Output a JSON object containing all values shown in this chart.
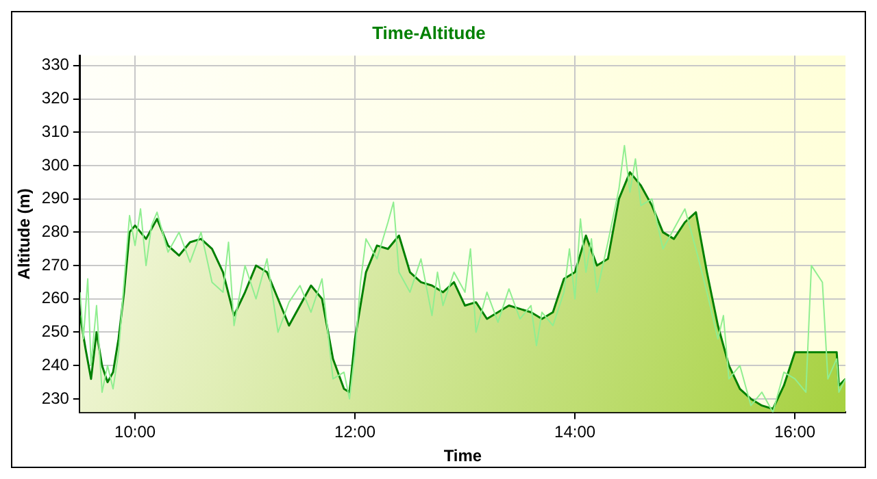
{
  "chart_data": {
    "type": "area",
    "title": "Time-Altitude",
    "xlabel": "Time",
    "ylabel": "Altitude (m)",
    "xlim": [
      9.5,
      16.46
    ],
    "ylim": [
      226,
      333
    ],
    "xticks": [
      {
        "value": 10,
        "label": "10:00"
      },
      {
        "value": 12,
        "label": "12:00"
      },
      {
        "value": 14,
        "label": "14:00"
      },
      {
        "value": 16,
        "label": "16:00"
      }
    ],
    "yticks": [
      230,
      240,
      250,
      260,
      270,
      280,
      290,
      300,
      310,
      320,
      330
    ],
    "grid": true,
    "legend": false,
    "series": [
      {
        "type": "line",
        "color": "#90ee90",
        "x": [
          9.5,
          9.53,
          9.57,
          9.6,
          9.65,
          9.7,
          9.75,
          9.8,
          9.85,
          9.9,
          9.95,
          10.0,
          10.05,
          10.1,
          10.15,
          10.2,
          10.3,
          10.4,
          10.5,
          10.6,
          10.7,
          10.8,
          10.85,
          10.9,
          11.0,
          11.1,
          11.2,
          11.3,
          11.4,
          11.5,
          11.6,
          11.7,
          11.8,
          11.9,
          11.95,
          12.0,
          12.05,
          12.1,
          12.2,
          12.3,
          12.35,
          12.4,
          12.5,
          12.6,
          12.7,
          12.75,
          12.8,
          12.9,
          13.0,
          13.05,
          13.1,
          13.2,
          13.3,
          13.4,
          13.5,
          13.6,
          13.65,
          13.7,
          13.8,
          13.9,
          13.95,
          14.0,
          14.05,
          14.1,
          14.15,
          14.2,
          14.3,
          14.4,
          14.45,
          14.5,
          14.55,
          14.6,
          14.7,
          14.8,
          14.9,
          15.0,
          15.1,
          15.2,
          15.3,
          15.35,
          15.4,
          15.5,
          15.6,
          15.7,
          15.8,
          15.9,
          16.0,
          16.1,
          16.15,
          16.25,
          16.3,
          16.38,
          16.4,
          16.46
        ],
        "values": [
          262,
          248,
          266,
          240,
          258,
          232,
          240,
          233,
          244,
          265,
          285,
          276,
          287,
          270,
          282,
          286,
          274,
          280,
          271,
          280,
          265,
          262,
          277,
          252,
          270,
          260,
          272,
          250,
          259,
          264,
          256,
          266,
          236,
          238,
          230,
          244,
          265,
          278,
          272,
          283,
          289,
          268,
          262,
          272,
          255,
          268,
          258,
          268,
          262,
          275,
          250,
          262,
          253,
          263,
          254,
          258,
          246,
          256,
          252,
          262,
          275,
          260,
          284,
          268,
          278,
          262,
          277,
          293,
          306,
          292,
          302,
          288,
          290,
          275,
          281,
          287,
          275,
          262,
          248,
          255,
          236,
          240,
          228,
          232,
          226,
          238,
          236,
          232,
          270,
          265,
          236,
          242,
          232,
          236
        ]
      },
      {
        "type": "area",
        "color": "#008000",
        "x": [
          9.5,
          9.55,
          9.6,
          9.65,
          9.7,
          9.75,
          9.8,
          9.85,
          9.9,
          9.95,
          10.0,
          10.1,
          10.2,
          10.3,
          10.4,
          10.5,
          10.6,
          10.7,
          10.8,
          10.9,
          11.0,
          11.1,
          11.2,
          11.3,
          11.4,
          11.5,
          11.6,
          11.7,
          11.8,
          11.9,
          11.95,
          12.0,
          12.1,
          12.2,
          12.3,
          12.4,
          12.5,
          12.6,
          12.7,
          12.8,
          12.9,
          13.0,
          13.1,
          13.2,
          13.3,
          13.4,
          13.5,
          13.6,
          13.7,
          13.8,
          13.9,
          14.0,
          14.1,
          14.2,
          14.3,
          14.4,
          14.5,
          14.6,
          14.7,
          14.8,
          14.9,
          15.0,
          15.1,
          15.2,
          15.3,
          15.4,
          15.5,
          15.6,
          15.7,
          15.8,
          15.9,
          16.0,
          16.05,
          16.2,
          16.38,
          16.4,
          16.46
        ],
        "values": [
          255,
          245,
          236,
          250,
          240,
          235,
          238,
          248,
          262,
          280,
          282,
          278,
          284,
          276,
          273,
          277,
          278,
          275,
          268,
          255,
          262,
          270,
          268,
          260,
          252,
          258,
          264,
          260,
          242,
          233,
          232,
          248,
          268,
          276,
          275,
          279,
          268,
          265,
          264,
          262,
          265,
          258,
          259,
          254,
          256,
          258,
          257,
          256,
          254,
          256,
          266,
          268,
          279,
          270,
          272,
          290,
          298,
          294,
          288,
          280,
          278,
          283,
          286,
          268,
          252,
          240,
          233,
          230,
          228,
          227,
          234,
          244,
          244,
          244,
          244,
          234,
          236
        ]
      }
    ]
  }
}
